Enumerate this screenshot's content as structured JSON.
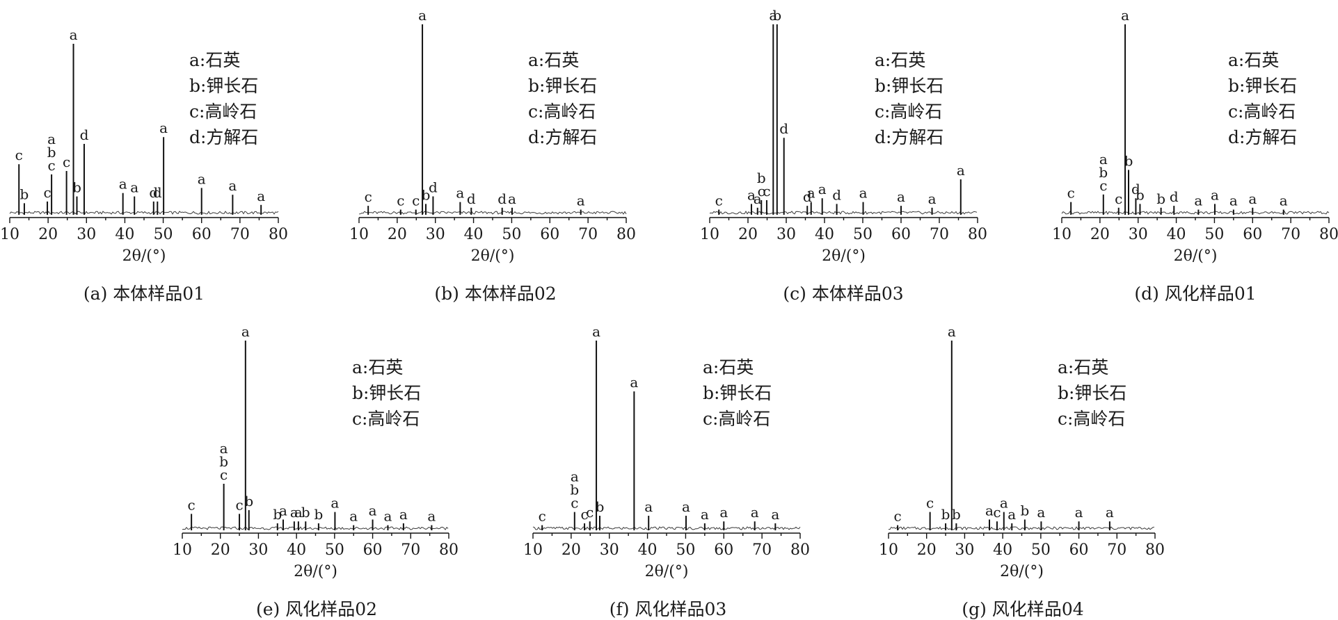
{
  "chart_data": [
    {
      "type": "line",
      "caption": "(a) 本体样品01",
      "xlabel": "2θ/(°)",
      "xlim": [
        10,
        80
      ],
      "xticks": [
        10,
        20,
        30,
        40,
        50,
        60,
        70,
        80
      ],
      "legend": [
        "a:石英",
        "b:钾长石",
        "c:高岭石",
        "d:方解石"
      ],
      "peaks": [
        {
          "x": 12.4,
          "y": 0.29,
          "labels": [
            "c"
          ]
        },
        {
          "x": 13.8,
          "y": 0.06,
          "labels": [
            "b"
          ]
        },
        {
          "x": 19.8,
          "y": 0.07,
          "labels": [
            "c"
          ]
        },
        {
          "x": 20.9,
          "y": 0.23,
          "labels": [
            "a",
            "b",
            "c"
          ]
        },
        {
          "x": 24.8,
          "y": 0.25,
          "labels": [
            "c"
          ]
        },
        {
          "x": 26.6,
          "y": 1.0,
          "labels": [
            "a"
          ]
        },
        {
          "x": 27.5,
          "y": 0.1,
          "labels": [
            "b"
          ]
        },
        {
          "x": 29.4,
          "y": 0.41,
          "labels": [
            "d"
          ]
        },
        {
          "x": 39.5,
          "y": 0.12,
          "labels": [
            "a"
          ]
        },
        {
          "x": 42.5,
          "y": 0.1,
          "labels": [
            "a"
          ]
        },
        {
          "x": 47.5,
          "y": 0.07,
          "labels": [
            "d"
          ]
        },
        {
          "x": 48.5,
          "y": 0.07,
          "labels": [
            "d"
          ]
        },
        {
          "x": 50.1,
          "y": 0.45,
          "labels": [
            "a"
          ]
        },
        {
          "x": 60.0,
          "y": 0.15,
          "labels": [
            "a"
          ]
        },
        {
          "x": 68.1,
          "y": 0.11,
          "labels": [
            "a"
          ]
        },
        {
          "x": 75.5,
          "y": 0.05,
          "labels": [
            "a"
          ]
        }
      ]
    },
    {
      "type": "line",
      "caption": "(b) 本体样品02",
      "xlabel": "2θ/(°)",
      "xlim": [
        10,
        80
      ],
      "xticks": [
        10,
        20,
        30,
        40,
        50,
        60,
        70,
        80
      ],
      "legend": [
        "a:石英",
        "b:钾长石",
        "c:高岭石",
        "d:方解石"
      ],
      "peaks": [
        {
          "x": 12.4,
          "y": 0.04,
          "labels": [
            "c"
          ]
        },
        {
          "x": 20.9,
          "y": 0.02,
          "labels": [
            "c"
          ]
        },
        {
          "x": 24.9,
          "y": 0.02,
          "labels": [
            "c"
          ]
        },
        {
          "x": 26.6,
          "y": 1.0,
          "labels": [
            "a"
          ]
        },
        {
          "x": 27.5,
          "y": 0.05,
          "labels": [
            "b"
          ]
        },
        {
          "x": 29.4,
          "y": 0.09,
          "labels": [
            "d"
          ]
        },
        {
          "x": 36.5,
          "y": 0.06,
          "labels": [
            "a"
          ]
        },
        {
          "x": 39.4,
          "y": 0.03,
          "labels": [
            "d"
          ]
        },
        {
          "x": 47.5,
          "y": 0.03,
          "labels": [
            "d"
          ]
        },
        {
          "x": 50.1,
          "y": 0.03,
          "labels": [
            "a"
          ]
        },
        {
          "x": 68.1,
          "y": 0.02,
          "labels": [
            "a"
          ]
        }
      ]
    },
    {
      "type": "line",
      "caption": "(c) 本体样品03",
      "xlabel": "2θ/(°)",
      "xlim": [
        10,
        80
      ],
      "xticks": [
        10,
        20,
        30,
        40,
        50,
        60,
        70,
        80
      ],
      "legend": [
        "a:石英",
        "b:钾长石",
        "c:高岭石",
        "d:方解石"
      ],
      "peaks": [
        {
          "x": 12.4,
          "y": 0.02,
          "labels": [
            "c"
          ]
        },
        {
          "x": 20.9,
          "y": 0.05,
          "labels": [
            "a"
          ]
        },
        {
          "x": 22.5,
          "y": 0.03,
          "labels": [
            "a"
          ]
        },
        {
          "x": 23.5,
          "y": 0.07,
          "labels": [
            "b",
            "c"
          ]
        },
        {
          "x": 24.9,
          "y": 0.07,
          "labels": [
            "c"
          ]
        },
        {
          "x": 26.6,
          "y": 1.0,
          "labels": [
            "a"
          ]
        },
        {
          "x": 27.6,
          "y": 1.0,
          "labels": [
            "b"
          ]
        },
        {
          "x": 29.4,
          "y": 0.4,
          "labels": [
            "d"
          ]
        },
        {
          "x": 35.5,
          "y": 0.04,
          "labels": [
            "d"
          ]
        },
        {
          "x": 36.5,
          "y": 0.06,
          "labels": [
            "a"
          ]
        },
        {
          "x": 39.4,
          "y": 0.08,
          "labels": [
            "a"
          ]
        },
        {
          "x": 43.2,
          "y": 0.05,
          "labels": [
            "d"
          ]
        },
        {
          "x": 50.1,
          "y": 0.06,
          "labels": [
            "a"
          ]
        },
        {
          "x": 60.0,
          "y": 0.04,
          "labels": [
            "a"
          ]
        },
        {
          "x": 68.1,
          "y": 0.03,
          "labels": [
            "a"
          ]
        },
        {
          "x": 75.6,
          "y": 0.18,
          "labels": [
            "a"
          ]
        }
      ]
    },
    {
      "type": "line",
      "caption": "(d) 风化样品01",
      "xlabel": "2θ/(°)",
      "xlim": [
        10,
        80
      ],
      "xticks": [
        10,
        20,
        30,
        40,
        50,
        60,
        70,
        80
      ],
      "legend": [
        "a:石英",
        "b:钾长石",
        "c:高岭石",
        "d:方解石"
      ],
      "peaks": [
        {
          "x": 12.4,
          "y": 0.06,
          "labels": [
            "c"
          ]
        },
        {
          "x": 20.9,
          "y": 0.1,
          "labels": [
            "a",
            "b",
            "c"
          ]
        },
        {
          "x": 24.9,
          "y": 0.03,
          "labels": [
            "c"
          ]
        },
        {
          "x": 26.6,
          "y": 1.0,
          "labels": [
            "a"
          ]
        },
        {
          "x": 27.5,
          "y": 0.23,
          "labels": [
            "b"
          ]
        },
        {
          "x": 29.4,
          "y": 0.08,
          "labels": [
            "d"
          ]
        },
        {
          "x": 30.5,
          "y": 0.05,
          "labels": [
            "b"
          ]
        },
        {
          "x": 36.0,
          "y": 0.03,
          "labels": [
            "b"
          ]
        },
        {
          "x": 39.4,
          "y": 0.04,
          "labels": [
            "d"
          ]
        },
        {
          "x": 45.8,
          "y": 0.02,
          "labels": [
            "a"
          ]
        },
        {
          "x": 50.1,
          "y": 0.05,
          "labels": [
            "a"
          ]
        },
        {
          "x": 55.0,
          "y": 0.02,
          "labels": [
            "a"
          ]
        },
        {
          "x": 60.0,
          "y": 0.03,
          "labels": [
            "a"
          ]
        },
        {
          "x": 68.1,
          "y": 0.02,
          "labels": [
            "a"
          ]
        }
      ]
    },
    {
      "type": "line",
      "caption": "(e) 风化样品02",
      "xlabel": "2θ/(°)",
      "xlim": [
        10,
        80
      ],
      "xticks": [
        10,
        20,
        30,
        40,
        50,
        60,
        70,
        80
      ],
      "legend": [
        "a:石英",
        "b:钾长石",
        "c:高岭石"
      ],
      "peaks": [
        {
          "x": 12.4,
          "y": 0.08,
          "labels": [
            "c"
          ]
        },
        {
          "x": 20.9,
          "y": 0.24,
          "labels": [
            "a",
            "b",
            "c"
          ]
        },
        {
          "x": 25.0,
          "y": 0.08,
          "labels": [
            "c"
          ]
        },
        {
          "x": 26.6,
          "y": 1.0,
          "labels": [
            "a"
          ]
        },
        {
          "x": 27.5,
          "y": 0.1,
          "labels": [
            "b"
          ]
        },
        {
          "x": 35.0,
          "y": 0.03,
          "labels": [
            "b"
          ]
        },
        {
          "x": 36.5,
          "y": 0.05,
          "labels": [
            "a"
          ]
        },
        {
          "x": 39.4,
          "y": 0.04,
          "labels": [
            "a"
          ]
        },
        {
          "x": 40.5,
          "y": 0.04,
          "labels": [
            "a"
          ]
        },
        {
          "x": 42.4,
          "y": 0.04,
          "labels": [
            "b"
          ]
        },
        {
          "x": 45.8,
          "y": 0.03,
          "labels": [
            "b"
          ]
        },
        {
          "x": 50.1,
          "y": 0.09,
          "labels": [
            "a"
          ]
        },
        {
          "x": 55.0,
          "y": 0.02,
          "labels": [
            "a"
          ]
        },
        {
          "x": 60.0,
          "y": 0.05,
          "labels": [
            "a"
          ]
        },
        {
          "x": 64.0,
          "y": 0.02,
          "labels": [
            "a"
          ]
        },
        {
          "x": 68.1,
          "y": 0.03,
          "labels": [
            "a"
          ]
        },
        {
          "x": 75.5,
          "y": 0.02,
          "labels": [
            "a"
          ]
        }
      ]
    },
    {
      "type": "line",
      "caption": "(f) 风化样品03",
      "xlabel": "2θ/(°)",
      "xlim": [
        10,
        80
      ],
      "xticks": [
        10,
        20,
        30,
        40,
        50,
        60,
        70,
        80
      ],
      "legend": [
        "a:石英",
        "b:钾长石",
        "c:高岭石"
      ],
      "peaks": [
        {
          "x": 12.4,
          "y": 0.02,
          "labels": [
            "c"
          ]
        },
        {
          "x": 20.9,
          "y": 0.09,
          "labels": [
            "a",
            "b",
            "c"
          ]
        },
        {
          "x": 23.5,
          "y": 0.03,
          "labels": [
            "c"
          ]
        },
        {
          "x": 24.9,
          "y": 0.04,
          "labels": [
            "c"
          ]
        },
        {
          "x": 26.6,
          "y": 1.0,
          "labels": [
            "a"
          ]
        },
        {
          "x": 27.5,
          "y": 0.07,
          "labels": [
            "b"
          ]
        },
        {
          "x": 36.5,
          "y": 0.73,
          "labels": [
            "a"
          ]
        },
        {
          "x": 40.3,
          "y": 0.07,
          "labels": [
            "a"
          ]
        },
        {
          "x": 50.1,
          "y": 0.07,
          "labels": [
            "a"
          ]
        },
        {
          "x": 55.0,
          "y": 0.03,
          "labels": [
            "a"
          ]
        },
        {
          "x": 60.0,
          "y": 0.04,
          "labels": [
            "a"
          ]
        },
        {
          "x": 68.1,
          "y": 0.04,
          "labels": [
            "a"
          ]
        },
        {
          "x": 73.5,
          "y": 0.03,
          "labels": [
            "a"
          ]
        }
      ]
    },
    {
      "type": "line",
      "caption": "(g) 风化样品04",
      "xlabel": "2θ/(°)",
      "xlim": [
        10,
        80
      ],
      "xticks": [
        10,
        20,
        30,
        40,
        50,
        60,
        70,
        80
      ],
      "legend": [
        "a:石英",
        "b:钾长石",
        "c:高岭石"
      ],
      "peaks": [
        {
          "x": 12.4,
          "y": 0.02,
          "labels": [
            "c"
          ]
        },
        {
          "x": 20.9,
          "y": 0.09,
          "labels": [
            "c"
          ]
        },
        {
          "x": 25.0,
          "y": 0.03,
          "labels": [
            "b"
          ]
        },
        {
          "x": 26.6,
          "y": 1.0,
          "labels": [
            "a"
          ]
        },
        {
          "x": 27.8,
          "y": 0.03,
          "labels": [
            "b"
          ]
        },
        {
          "x": 36.5,
          "y": 0.05,
          "labels": [
            "a"
          ]
        },
        {
          "x": 38.5,
          "y": 0.04,
          "labels": [
            "c"
          ]
        },
        {
          "x": 40.3,
          "y": 0.09,
          "labels": [
            "a"
          ]
        },
        {
          "x": 42.4,
          "y": 0.03,
          "labels": [
            "a"
          ]
        },
        {
          "x": 45.8,
          "y": 0.05,
          "labels": [
            "b"
          ]
        },
        {
          "x": 50.1,
          "y": 0.04,
          "labels": [
            "a"
          ]
        },
        {
          "x": 60.0,
          "y": 0.04,
          "labels": [
            "a"
          ]
        },
        {
          "x": 68.1,
          "y": 0.04,
          "labels": [
            "a"
          ]
        }
      ]
    }
  ]
}
